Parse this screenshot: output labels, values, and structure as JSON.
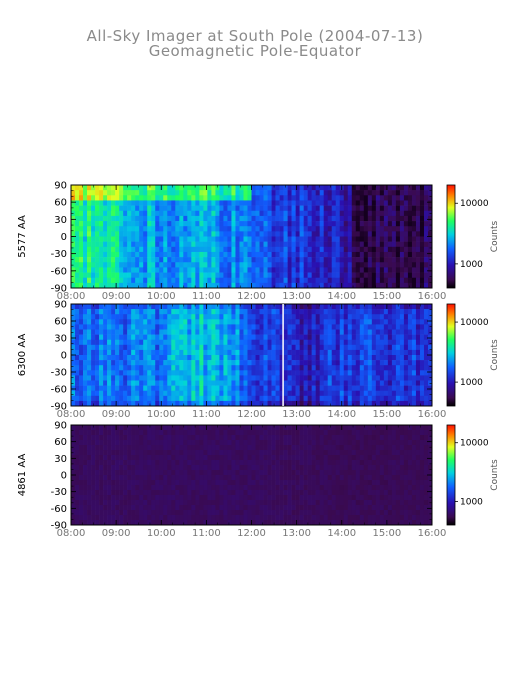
{
  "title": "All-Sky Imager at South Pole (2004-07-13)",
  "subtitle": "Geomagnetic Pole-Equator",
  "chart_data": {
    "type": "heatmap",
    "x_ticks": [
      "08:00",
      "09:00",
      "10:00",
      "11:00",
      "12:00",
      "13:00",
      "14:00",
      "15:00",
      "16:00"
    ],
    "xlim": [
      "08:00",
      "16:00"
    ],
    "y_ticks": [
      90,
      60,
      30,
      0,
      -30,
      -60,
      -90
    ],
    "ylim": [
      -90,
      90
    ],
    "colorbar": {
      "label": "Counts",
      "scale": "log",
      "ticks": [
        1000,
        10000
      ],
      "tick_labels": [
        "1000",
        "10000"
      ]
    },
    "panels": [
      {
        "wavelength_label": "5577 AA",
        "description_intensity": [
          {
            "time": "08:00",
            "level": 0.62
          },
          {
            "time": "09:00",
            "level": 0.55
          },
          {
            "time": "10:00",
            "level": 0.45
          },
          {
            "time": "11:00",
            "level": 0.48
          },
          {
            "time": "12:00",
            "level": 0.38
          },
          {
            "time": "13:00",
            "level": 0.3
          },
          {
            "time": "14:00",
            "level": 0.25
          },
          {
            "time": "14:30",
            "level": 0.05
          },
          {
            "time": "15:00",
            "level": 0.08
          },
          {
            "time": "16:00",
            "level": 0.08
          }
        ]
      },
      {
        "wavelength_label": "6300 AA",
        "description_intensity": [
          {
            "time": "08:00",
            "level": 0.4
          },
          {
            "time": "09:00",
            "level": 0.38
          },
          {
            "time": "10:00",
            "level": 0.42
          },
          {
            "time": "11:00",
            "level": 0.5
          },
          {
            "time": "12:00",
            "level": 0.35
          },
          {
            "time": "13:00",
            "level": 0.22
          },
          {
            "time": "14:00",
            "level": 0.32
          },
          {
            "time": "15:00",
            "level": 0.3
          },
          {
            "time": "16:00",
            "level": 0.28
          }
        ]
      },
      {
        "wavelength_label": "4861 AA",
        "description_intensity": [
          {
            "time": "08:00",
            "level": 0.1
          },
          {
            "time": "10:00",
            "level": 0.1
          },
          {
            "time": "12:00",
            "level": 0.1
          },
          {
            "time": "14:00",
            "level": 0.09
          },
          {
            "time": "16:00",
            "level": 0.09
          }
        ]
      }
    ]
  },
  "colors": {
    "low": "#3a0a40",
    "mid_low": "#2a10b0",
    "mid": "#1050f0",
    "mid_high": "#00d0d0",
    "high": "#40ff40",
    "top": "#ff2000"
  }
}
